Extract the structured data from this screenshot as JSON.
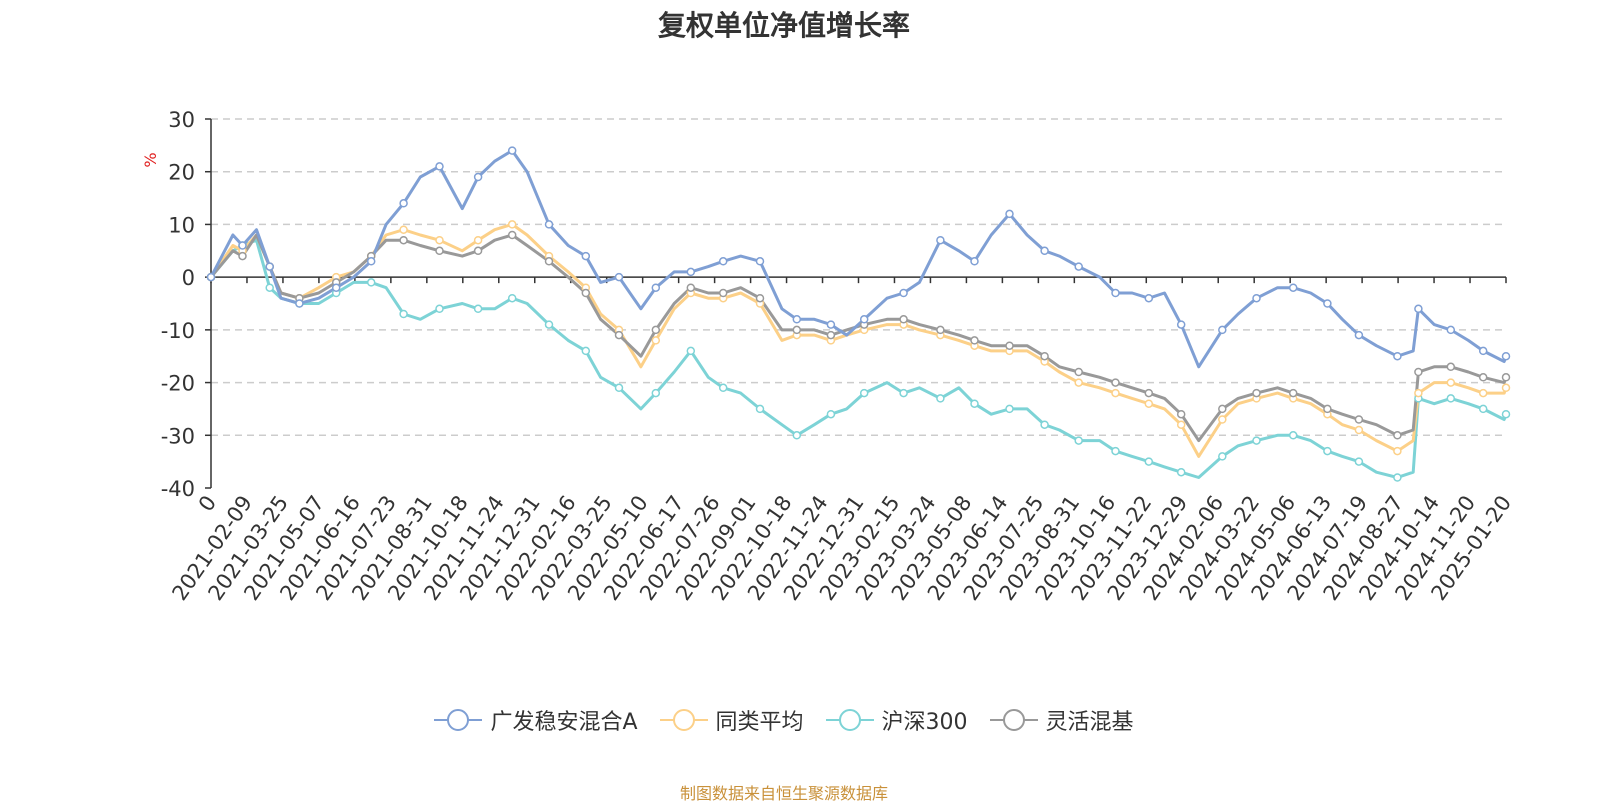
{
  "chart_data": {
    "type": "line",
    "title": "复权单位净值增长率",
    "ylabel": "%",
    "ylim": [
      -40,
      30
    ],
    "yticks": [
      30,
      20,
      10,
      0,
      -10,
      -20,
      -30,
      -40
    ],
    "grid": true,
    "legend_position": "bottom",
    "xlim": [
      "2021-01-04",
      "2025-01-22"
    ],
    "x_tick_labels": [
      "0",
      "2021-02-09",
      "2021-03-25",
      "2021-05-07",
      "2021-06-16",
      "2021-07-23",
      "2021-08-31",
      "2021-10-18",
      "2021-11-24",
      "2021-12-31",
      "2022-02-16",
      "2022-03-25",
      "2022-05-10",
      "2022-06-17",
      "2022-07-26",
      "2022-09-01",
      "2022-10-18",
      "2022-11-24",
      "2022-12-31",
      "2023-02-15",
      "2023-03-24",
      "2023-05-08",
      "2023-06-14",
      "2023-07-25",
      "2023-08-31",
      "2023-10-16",
      "2023-11-22",
      "2023-12-29",
      "2024-02-06",
      "2024-03-22",
      "2024-05-06",
      "2024-06-13",
      "2024-07-19",
      "2024-08-27",
      "2024-10-14",
      "2024-11-20",
      "2025-01-20"
    ],
    "x": [
      "2021-01-04",
      "2021-01-29",
      "2021-02-09",
      "2021-02-25",
      "2021-03-12",
      "2021-03-25",
      "2021-04-15",
      "2021-05-07",
      "2021-05-27",
      "2021-06-16",
      "2021-07-06",
      "2021-07-23",
      "2021-08-12",
      "2021-08-31",
      "2021-09-22",
      "2021-10-18",
      "2021-11-05",
      "2021-11-24",
      "2021-12-14",
      "2021-12-31",
      "2022-01-25",
      "2022-02-16",
      "2022-03-08",
      "2022-03-25",
      "2022-04-15",
      "2022-05-10",
      "2022-05-27",
      "2022-06-17",
      "2022-07-06",
      "2022-07-26",
      "2022-08-12",
      "2022-09-01",
      "2022-09-23",
      "2022-10-18",
      "2022-11-04",
      "2022-11-24",
      "2022-12-13",
      "2022-12-31",
      "2023-01-20",
      "2023-02-15",
      "2023-03-06",
      "2023-03-24",
      "2023-04-17",
      "2023-05-08",
      "2023-05-26",
      "2023-06-14",
      "2023-07-05",
      "2023-07-25",
      "2023-08-14",
      "2023-08-31",
      "2023-09-22",
      "2023-10-16",
      "2023-11-03",
      "2023-11-22",
      "2023-12-11",
      "2023-12-29",
      "2024-01-17",
      "2024-02-06",
      "2024-03-04",
      "2024-03-22",
      "2024-04-12",
      "2024-05-06",
      "2024-05-24",
      "2024-06-13",
      "2024-07-02",
      "2024-07-19",
      "2024-08-07",
      "2024-08-27",
      "2024-09-20",
      "2024-10-08",
      "2024-10-14",
      "2024-11-01",
      "2024-11-20",
      "2024-12-10",
      "2024-12-27",
      "2025-01-20",
      "2025-01-22"
    ],
    "series": [
      {
        "name": "广发稳安混合A",
        "color": "#7f9fd4",
        "values": [
          0,
          8,
          6,
          9,
          2,
          -4,
          -5,
          -4,
          -2,
          0,
          3,
          10,
          14,
          19,
          21,
          13,
          19,
          22,
          24,
          20,
          10,
          6,
          4,
          -1,
          0,
          -6,
          -2,
          1,
          1,
          2,
          3,
          4,
          3,
          -6,
          -8,
          -8,
          -9,
          -11,
          -8,
          -4,
          -3,
          -1,
          7,
          5,
          3,
          8,
          12,
          8,
          5,
          4,
          2,
          0,
          -3,
          -3,
          -4,
          -3,
          -9,
          -17,
          -10,
          -7,
          -4,
          -2,
          -2,
          -3,
          -5,
          -8,
          -11,
          -13,
          -15,
          -14,
          -6,
          -9,
          -10,
          -12,
          -14,
          -16,
          -15
        ]
      },
      {
        "name": "同类平均",
        "color": "#fcd088",
        "values": [
          0,
          6,
          5,
          8,
          2,
          -3,
          -4,
          -2,
          0,
          1,
          4,
          8,
          9,
          8,
          7,
          5,
          7,
          9,
          10,
          8,
          4,
          1,
          -2,
          -7,
          -10,
          -17,
          -12,
          -6,
          -3,
          -4,
          -4,
          -3,
          -5,
          -12,
          -11,
          -11,
          -12,
          -11,
          -10,
          -9,
          -9,
          -10,
          -11,
          -12,
          -13,
          -14,
          -14,
          -14,
          -16,
          -18,
          -20,
          -21,
          -22,
          -23,
          -24,
          -25,
          -28,
          -34,
          -27,
          -24,
          -23,
          -22,
          -23,
          -24,
          -26,
          -28,
          -29,
          -31,
          -33,
          -31,
          -22,
          -20,
          -20,
          -21,
          -22,
          -22,
          -21
        ]
      },
      {
        "name": "沪深300",
        "color": "#7dd3d6",
        "values": [
          0,
          5,
          6,
          7,
          -2,
          -4,
          -5,
          -5,
          -3,
          -1,
          -1,
          -2,
          -7,
          -8,
          -6,
          -5,
          -6,
          -6,
          -4,
          -5,
          -9,
          -12,
          -14,
          -19,
          -21,
          -25,
          -22,
          -18,
          -14,
          -19,
          -21,
          -22,
          -25,
          -28,
          -30,
          -28,
          -26,
          -25,
          -22,
          -20,
          -22,
          -21,
          -23,
          -21,
          -24,
          -26,
          -25,
          -25,
          -28,
          -29,
          -31,
          -31,
          -33,
          -34,
          -35,
          -36,
          -37,
          -38,
          -34,
          -32,
          -31,
          -30,
          -30,
          -31,
          -33,
          -34,
          -35,
          -37,
          -38,
          -37,
          -23,
          -24,
          -23,
          -24,
          -25,
          -27,
          -26
        ]
      },
      {
        "name": "灵活混基",
        "color": "#999999",
        "values": [
          0,
          5,
          4,
          8,
          2,
          -3,
          -4,
          -3,
          -1,
          1,
          4,
          7,
          7,
          6,
          5,
          4,
          5,
          7,
          8,
          6,
          3,
          0,
          -3,
          -8,
          -11,
          -15,
          -10,
          -5,
          -2,
          -3,
          -3,
          -2,
          -4,
          -10,
          -10,
          -10,
          -11,
          -10,
          -9,
          -8,
          -8,
          -9,
          -10,
          -11,
          -12,
          -13,
          -13,
          -13,
          -15,
          -17,
          -18,
          -19,
          -20,
          -21,
          -22,
          -23,
          -26,
          -31,
          -25,
          -23,
          -22,
          -21,
          -22,
          -23,
          -25,
          -26,
          -27,
          -28,
          -30,
          -29,
          -18,
          -17,
          -17,
          -18,
          -19,
          -20,
          -19
        ]
      }
    ]
  },
  "source_note": "制图数据来自恒生聚源数据库"
}
